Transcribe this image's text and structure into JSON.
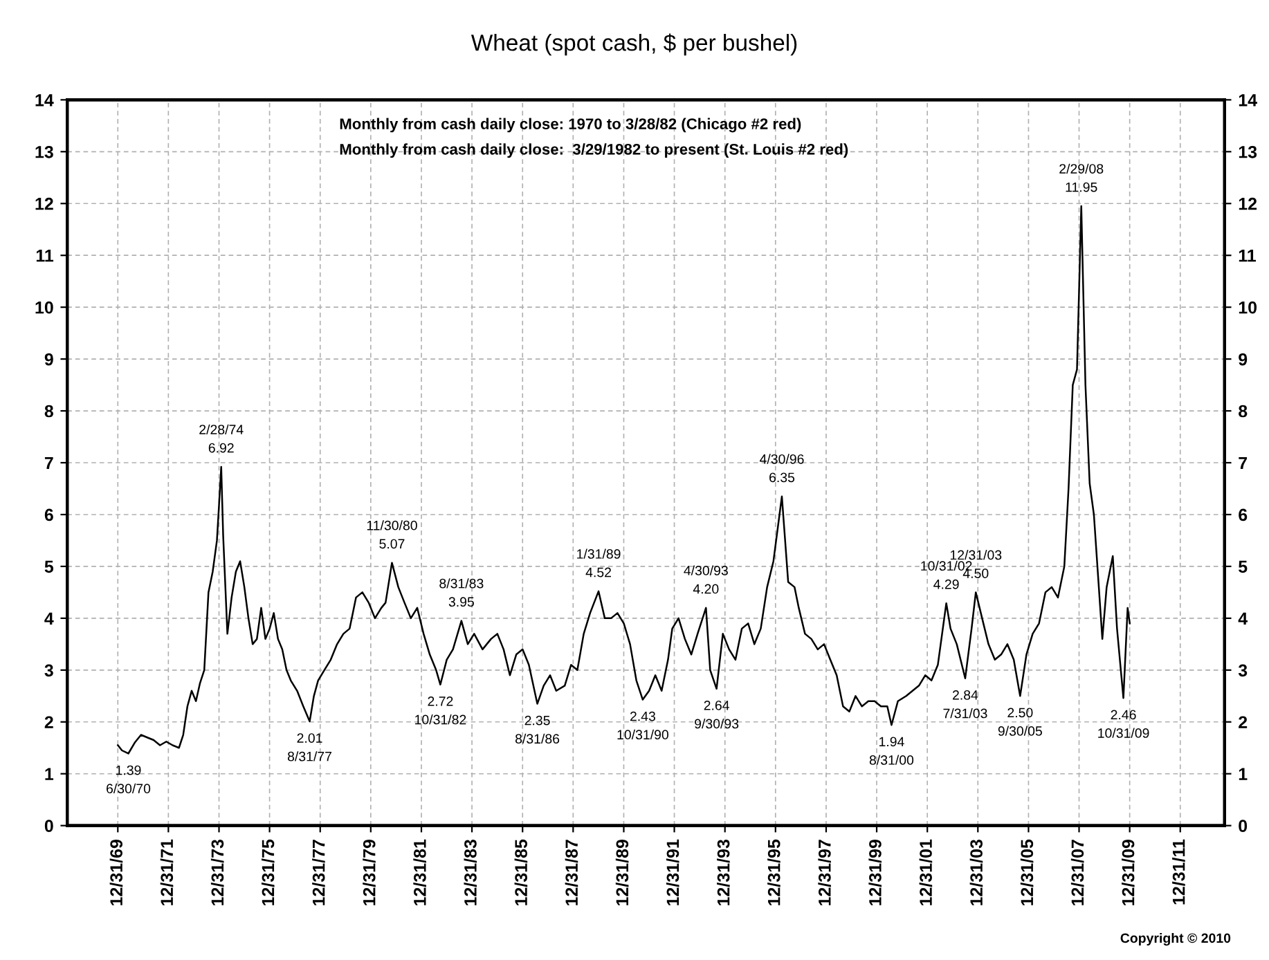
{
  "chart_data": {
    "type": "line",
    "title": "Wheat (spot cash, $ per bushel)",
    "x": [
      "1970-01",
      "1970-03",
      "1970-06",
      "1970-09",
      "1970-12",
      "1971-03",
      "1971-06",
      "1971-09",
      "1971-12",
      "1972-03",
      "1972-06",
      "1972-08",
      "1972-10",
      "1972-12",
      "1973-02",
      "1973-04",
      "1973-06",
      "1973-08",
      "1973-10",
      "1973-12",
      "1974-01",
      "1974-02",
      "1974-03",
      "1974-05",
      "1974-07",
      "1974-09",
      "1974-11",
      "1975-01",
      "1975-03",
      "1975-05",
      "1975-07",
      "1975-09",
      "1975-11",
      "1976-01",
      "1976-03",
      "1976-05",
      "1976-07",
      "1976-09",
      "1976-11",
      "1977-02",
      "1977-05",
      "1977-08",
      "1977-10",
      "1977-12",
      "1978-03",
      "1978-06",
      "1978-09",
      "1978-12",
      "1979-03",
      "1979-06",
      "1979-09",
      "1979-12",
      "1980-03",
      "1980-06",
      "1980-08",
      "1980-11",
      "1981-02",
      "1981-05",
      "1981-08",
      "1981-11",
      "1982-02",
      "1982-05",
      "1982-08",
      "1982-10",
      "1983-01",
      "1983-04",
      "1983-08",
      "1983-11",
      "1984-02",
      "1984-06",
      "1984-10",
      "1985-01",
      "1985-04",
      "1985-07",
      "1985-10",
      "1986-01",
      "1986-04",
      "1986-08",
      "1986-11",
      "1987-02",
      "1987-05",
      "1987-09",
      "1987-12",
      "1988-03",
      "1988-06",
      "1988-09",
      "1989-01",
      "1989-04",
      "1989-07",
      "1989-10",
      "1990-01",
      "1990-04",
      "1990-07",
      "1990-10",
      "1991-01",
      "1991-04",
      "1991-07",
      "1991-10",
      "1991-12",
      "1992-03",
      "1992-06",
      "1992-09",
      "1992-12",
      "1993-04",
      "1993-06",
      "1993-09",
      "1993-12",
      "1994-03",
      "1994-06",
      "1994-09",
      "1994-12",
      "1995-03",
      "1995-06",
      "1995-09",
      "1995-12",
      "1996-04",
      "1996-07",
      "1996-10",
      "1996-12",
      "1997-03",
      "1997-06",
      "1997-09",
      "1997-12",
      "1998-03",
      "1998-06",
      "1998-09",
      "1998-12",
      "1999-03",
      "1999-06",
      "1999-09",
      "1999-12",
      "2000-03",
      "2000-06",
      "2000-08",
      "2000-11",
      "2001-03",
      "2001-06",
      "2001-09",
      "2001-12",
      "2002-03",
      "2002-06",
      "2002-10",
      "2002-12",
      "2003-03",
      "2003-07",
      "2003-10",
      "2003-12",
      "2004-03",
      "2004-06",
      "2004-09",
      "2004-12",
      "2005-03",
      "2005-06",
      "2005-09",
      "2005-12",
      "2006-03",
      "2006-06",
      "2006-09",
      "2006-12",
      "2007-03",
      "2007-06",
      "2007-08",
      "2007-10",
      "2007-12",
      "2008-02",
      "2008-04",
      "2008-06",
      "2008-08",
      "2008-10",
      "2008-12",
      "2009-02",
      "2009-05",
      "2009-07",
      "2009-10",
      "2009-12",
      "2010-01"
    ],
    "series": [
      {
        "color": "#000000",
        "values": [
          1.55,
          1.45,
          1.39,
          1.6,
          1.75,
          1.7,
          1.65,
          1.55,
          1.62,
          1.55,
          1.5,
          1.75,
          2.3,
          2.6,
          2.4,
          2.75,
          3.0,
          4.5,
          4.9,
          5.5,
          6.2,
          6.92,
          5.6,
          3.7,
          4.4,
          4.9,
          5.1,
          4.6,
          4.0,
          3.5,
          3.6,
          4.2,
          3.6,
          3.8,
          4.1,
          3.6,
          3.4,
          3.0,
          2.8,
          2.6,
          2.3,
          2.01,
          2.5,
          2.8,
          3.0,
          3.2,
          3.5,
          3.7,
          3.8,
          4.4,
          4.5,
          4.3,
          4.0,
          4.2,
          4.3,
          5.07,
          4.6,
          4.3,
          4.0,
          4.2,
          3.7,
          3.3,
          3.0,
          2.72,
          3.2,
          3.4,
          3.95,
          3.5,
          3.7,
          3.4,
          3.6,
          3.7,
          3.4,
          2.9,
          3.3,
          3.4,
          3.1,
          2.35,
          2.7,
          2.9,
          2.6,
          2.7,
          3.1,
          3.0,
          3.7,
          4.1,
          4.52,
          4.0,
          4.0,
          4.1,
          3.9,
          3.5,
          2.8,
          2.43,
          2.6,
          2.9,
          2.6,
          3.2,
          3.8,
          4.0,
          3.6,
          3.3,
          3.7,
          4.2,
          3.0,
          2.64,
          3.7,
          3.4,
          3.2,
          3.8,
          3.9,
          3.5,
          3.8,
          4.6,
          5.1,
          6.35,
          4.7,
          4.6,
          4.2,
          3.7,
          3.6,
          3.4,
          3.5,
          3.2,
          2.9,
          2.3,
          2.2,
          2.5,
          2.3,
          2.4,
          2.4,
          2.3,
          2.3,
          1.94,
          2.4,
          2.5,
          2.6,
          2.7,
          2.9,
          2.8,
          3.1,
          4.29,
          3.8,
          3.5,
          2.84,
          3.8,
          4.5,
          4.0,
          3.5,
          3.2,
          3.3,
          3.5,
          3.2,
          2.5,
          3.3,
          3.7,
          3.9,
          4.5,
          4.6,
          4.4,
          5.0,
          6.5,
          8.5,
          8.8,
          11.95,
          8.5,
          6.6,
          6.0,
          4.8,
          3.6,
          4.6,
          5.2,
          3.8,
          2.46,
          4.2,
          3.9
        ]
      }
    ],
    "xlim": [
      "1968-01-01",
      "2013-10-01"
    ],
    "xticks": [
      {
        "value": "1969-12-31",
        "label": "12/31/69"
      },
      {
        "value": "1971-12-31",
        "label": "12/31/71"
      },
      {
        "value": "1973-12-31",
        "label": "12/31/73"
      },
      {
        "value": "1975-12-31",
        "label": "12/31/75"
      },
      {
        "value": "1977-12-31",
        "label": "12/31/77"
      },
      {
        "value": "1979-12-31",
        "label": "12/31/79"
      },
      {
        "value": "1981-12-31",
        "label": "12/31/81"
      },
      {
        "value": "1983-12-31",
        "label": "12/31/83"
      },
      {
        "value": "1985-12-31",
        "label": "12/31/85"
      },
      {
        "value": "1987-12-31",
        "label": "12/31/87"
      },
      {
        "value": "1989-12-31",
        "label": "12/31/89"
      },
      {
        "value": "1991-12-31",
        "label": "12/31/91"
      },
      {
        "value": "1993-12-31",
        "label": "12/31/93"
      },
      {
        "value": "1995-12-31",
        "label": "12/31/95"
      },
      {
        "value": "1997-12-31",
        "label": "12/31/97"
      },
      {
        "value": "1999-12-31",
        "label": "12/31/99"
      },
      {
        "value": "2001-12-31",
        "label": "12/31/01"
      },
      {
        "value": "2003-12-31",
        "label": "12/31/03"
      },
      {
        "value": "2005-12-31",
        "label": "12/31/05"
      },
      {
        "value": "2007-12-31",
        "label": "12/31/07"
      },
      {
        "value": "2009-12-31",
        "label": "12/31/09"
      },
      {
        "value": "2011-12-31",
        "label": "12/31/11"
      }
    ],
    "ylim": [
      0,
      14
    ],
    "yticks": [
      0,
      1,
      2,
      3,
      4,
      5,
      6,
      7,
      8,
      9,
      10,
      11,
      12,
      13,
      14
    ],
    "y2lim": [
      0,
      14
    ],
    "y2ticks": [
      0,
      1,
      2,
      3,
      4,
      5,
      6,
      7,
      8,
      9,
      10,
      11,
      12,
      13,
      14
    ],
    "grid": true,
    "line_style": "solid",
    "legend": false,
    "annotations": [
      "Monthly from cash daily close: 1970 to 3/28/82 (Chicago #2 red)",
      "Monthly from cash daily close:  3/29/1982 to present (St. Louis #2 red)",
      "Copyright © 2010",
      {
        "text": "1.39\n6/30/70",
        "x": "1970-06",
        "y": 1.39
      },
      {
        "text": "2/28/74\n6.92",
        "x": "1974-02",
        "y": 6.92
      },
      {
        "text": "2.01\n8/31/77",
        "x": "1977-08",
        "y": 2.01
      },
      {
        "text": "11/30/80\n5.07",
        "x": "1980-11",
        "y": 5.07
      },
      {
        "text": "2.72\n10/31/82",
        "x": "1982-10",
        "y": 2.72
      },
      {
        "text": "8/31/83\n3.95",
        "x": "1983-08",
        "y": 3.95
      },
      {
        "text": "2.35\n8/31/86",
        "x": "1986-08",
        "y": 2.35
      },
      {
        "text": "1/31/89\n4.52",
        "x": "1989-01",
        "y": 4.52
      },
      {
        "text": "2.43\n10/31/90",
        "x": "1990-10",
        "y": 2.43
      },
      {
        "text": "4/30/93\n4.20",
        "x": "1993-04",
        "y": 4.2
      },
      {
        "text": "2.64\n9/30/93",
        "x": "1993-09",
        "y": 2.64
      },
      {
        "text": "4/30/96\n6.35",
        "x": "1996-04",
        "y": 6.35
      },
      {
        "text": "1.94\n8/31/00",
        "x": "2000-08",
        "y": 1.94
      },
      {
        "text": "10/31/02\n4.29",
        "x": "2002-10",
        "y": 4.29
      },
      {
        "text": "2.84\n7/31/03",
        "x": "2003-07",
        "y": 2.84
      },
      {
        "text": "12/31/03\n4.50",
        "x": "2003-12",
        "y": 4.5
      },
      {
        "text": "2.50\n9/30/05",
        "x": "2005-09",
        "y": 2.5
      },
      {
        "text": "2/29/08\n11.95",
        "x": "2008-02",
        "y": 11.95
      },
      {
        "text": "2.46\n10/31/09",
        "x": "2009-10",
        "y": 2.46
      }
    ]
  }
}
